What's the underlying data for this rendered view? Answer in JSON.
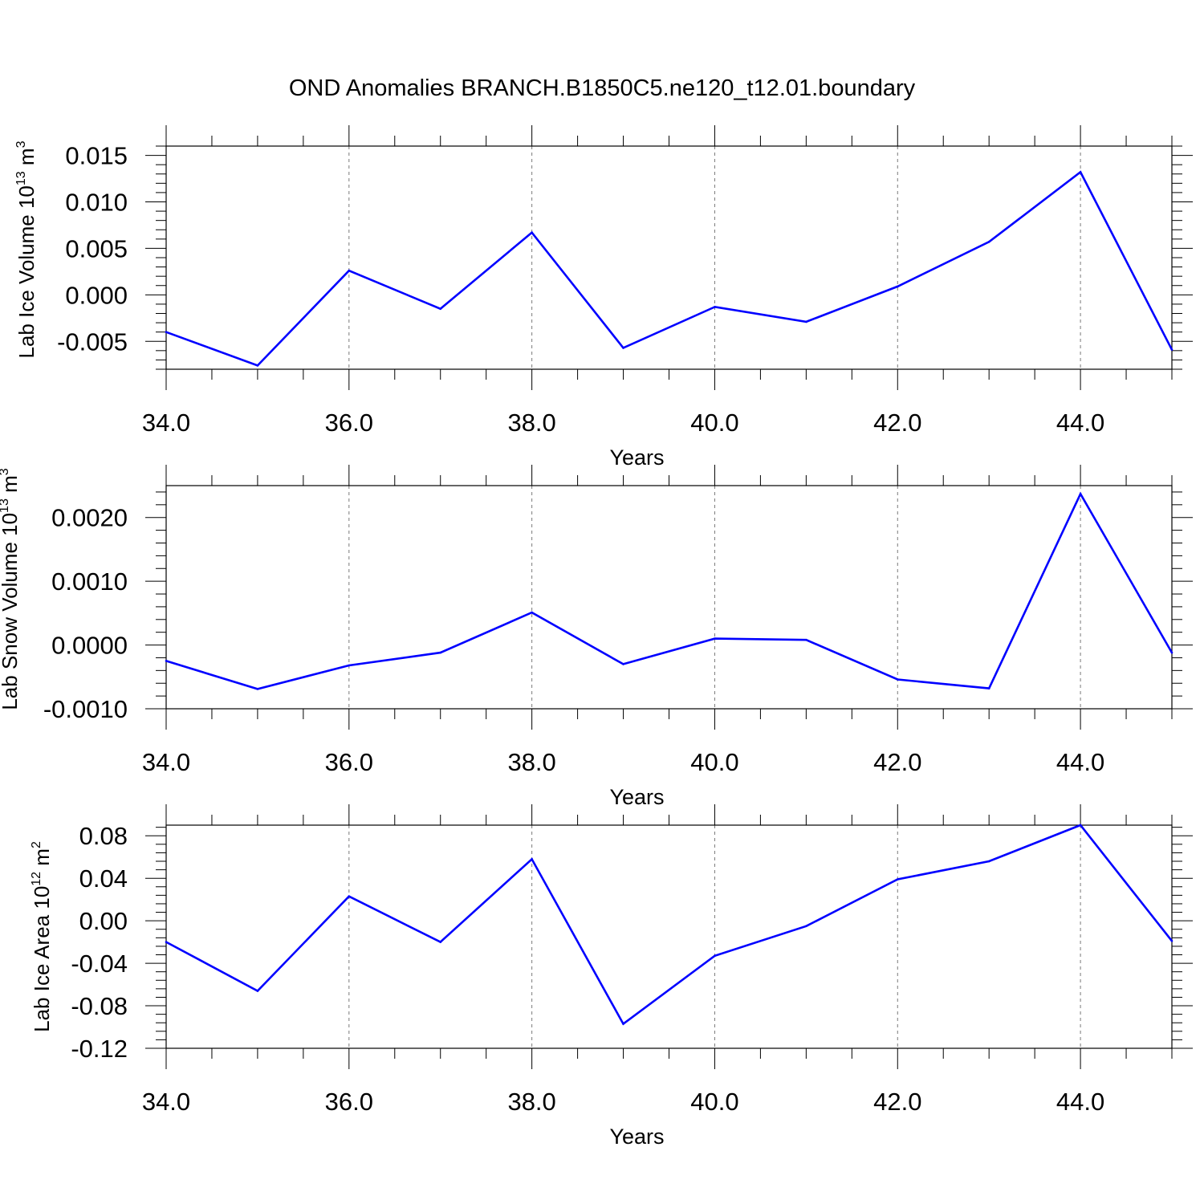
{
  "title": "OND Anomalies BRANCH.B1850C5.ne120_t12.01.boundary",
  "chart_data": [
    {
      "type": "line",
      "ylabel": {
        "main": "Lab Ice Volume 10",
        "exp": "13",
        "unit": " m",
        "unit_exp": "3"
      },
      "xlabel": "Years",
      "xlim": [
        34,
        45
      ],
      "ylim": [
        -0.008,
        0.016
      ],
      "grid": "vertical dashed at major x ticks",
      "x_ticks": [
        34,
        36,
        38,
        40,
        42,
        44
      ],
      "x_tick_labels": [
        "34.0",
        "36.0",
        "38.0",
        "40.0",
        "42.0",
        "44.0"
      ],
      "y_ticks": [
        -0.005,
        0.0,
        0.005,
        0.01,
        0.015
      ],
      "y_tick_labels": [
        "-0.005",
        "0.000",
        "0.005",
        "0.010",
        "0.015"
      ],
      "color": "#0000ff",
      "x": [
        34,
        35,
        36,
        37,
        38,
        39,
        40,
        41,
        42,
        43,
        44,
        45
      ],
      "y": [
        -0.004,
        -0.0076,
        0.0026,
        -0.0015,
        0.0067,
        -0.0057,
        -0.0013,
        -0.0029,
        0.0009,
        0.0057,
        0.0132,
        -0.0059
      ]
    },
    {
      "type": "line",
      "ylabel": {
        "main": "Lab Snow Volume 10",
        "exp": "13",
        "unit": " m",
        "unit_exp": "3"
      },
      "xlabel": "Years",
      "xlim": [
        34,
        45
      ],
      "ylim": [
        -0.001,
        0.0025
      ],
      "grid": "vertical dashed at major x ticks",
      "x_ticks": [
        34,
        36,
        38,
        40,
        42,
        44
      ],
      "x_tick_labels": [
        "34.0",
        "36.0",
        "38.0",
        "40.0",
        "42.0",
        "44.0"
      ],
      "y_ticks": [
        -0.001,
        0.0,
        0.001,
        0.002
      ],
      "y_tick_labels": [
        "-0.0010",
        "0.0000",
        "0.0010",
        "0.0020"
      ],
      "color": "#0000ff",
      "x": [
        34,
        35,
        36,
        37,
        38,
        39,
        40,
        41,
        42,
        43,
        44,
        45
      ],
      "y": [
        -0.00025,
        -0.00069,
        -0.00032,
        -0.00012,
        0.00051,
        -0.0003,
        0.0001,
        8e-05,
        -0.00054,
        -0.00068,
        0.00237,
        -0.00012
      ]
    },
    {
      "type": "line",
      "ylabel": {
        "main": "Lab Ice Area 10",
        "exp": "12",
        "unit": " m",
        "unit_exp": "2"
      },
      "xlabel": "Years",
      "xlim": [
        34,
        45
      ],
      "ylim": [
        -0.12,
        0.09
      ],
      "grid": "vertical dashed at major x ticks",
      "x_ticks": [
        34,
        36,
        38,
        40,
        42,
        44
      ],
      "x_tick_labels": [
        "34.0",
        "36.0",
        "38.0",
        "40.0",
        "42.0",
        "44.0"
      ],
      "y_ticks": [
        -0.12,
        -0.08,
        -0.04,
        0.0,
        0.04,
        0.08
      ],
      "y_tick_labels": [
        "-0.12",
        "-0.08",
        "-0.04",
        "0.00",
        "0.04",
        "0.08"
      ],
      "color": "#0000ff",
      "x": [
        34,
        35,
        36,
        37,
        38,
        39,
        40,
        41,
        42,
        43,
        44,
        45
      ],
      "y": [
        -0.02,
        -0.066,
        0.023,
        -0.02,
        0.058,
        -0.097,
        -0.033,
        -0.005,
        0.039,
        0.056,
        0.09,
        -0.019
      ]
    }
  ]
}
